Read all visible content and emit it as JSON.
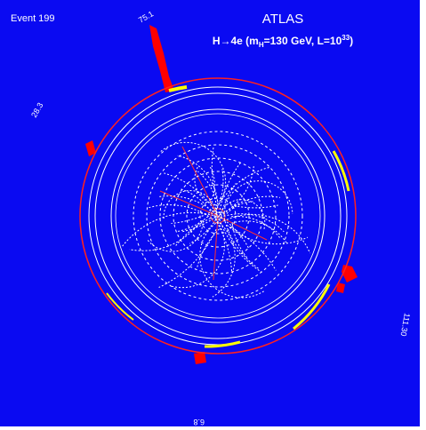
{
  "header": {
    "event": "Event  199",
    "experiment": "ATLAS",
    "process": {
      "before": "H→4e (m",
      "sub": "H",
      "middle": "=130 GeV, L=10",
      "sup": "33",
      "after": ")"
    }
  },
  "energy_labels": {
    "top": "75.1",
    "left": "28.3",
    "right": "111.30",
    "bottom": "6.8"
  }
}
